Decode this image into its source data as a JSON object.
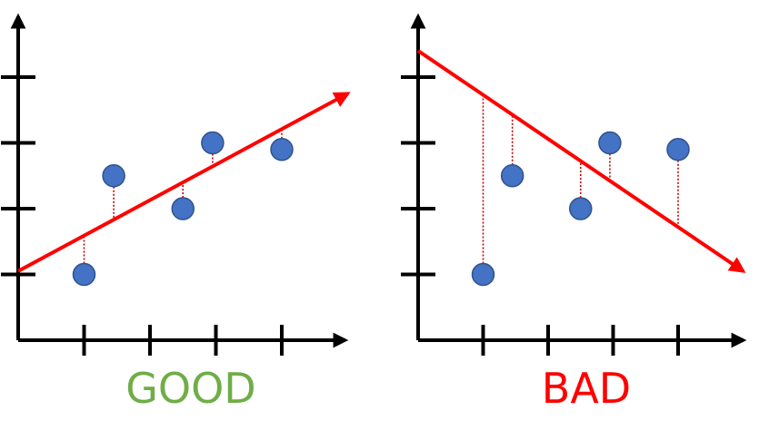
{
  "colors": {
    "axis": "#000000",
    "point_fill": "#4472C4",
    "point_stroke": "#2F528F",
    "fit_line": "#FF0000",
    "residual": "#C00000",
    "good_label": "#70AD47",
    "bad_label": "#FF0000"
  },
  "chart_data": [
    {
      "type": "scatter",
      "caption": "GOOD",
      "xlim": [
        0,
        5
      ],
      "ylim": [
        0,
        5
      ],
      "x_ticks": [
        1,
        2,
        3,
        4
      ],
      "y_ticks": [
        1,
        2,
        3,
        4
      ],
      "points": [
        {
          "x": 1.0,
          "y": 1.0
        },
        {
          "x": 1.45,
          "y": 2.5
        },
        {
          "x": 2.5,
          "y": 2.0
        },
        {
          "x": 2.95,
          "y": 3.0
        },
        {
          "x": 4.0,
          "y": 2.9
        }
      ],
      "fit_line": {
        "x0": 0.0,
        "y0": 1.05,
        "x1": 5.0,
        "y1": 3.75
      },
      "residuals_shown": true
    },
    {
      "type": "scatter",
      "caption": "BAD",
      "xlim": [
        0,
        5
      ],
      "ylim": [
        0,
        5
      ],
      "x_ticks": [
        1,
        2,
        3,
        4
      ],
      "y_ticks": [
        1,
        2,
        3,
        4
      ],
      "points": [
        {
          "x": 1.0,
          "y": 1.0
        },
        {
          "x": 1.45,
          "y": 2.5
        },
        {
          "x": 2.5,
          "y": 2.0
        },
        {
          "x": 2.95,
          "y": 3.0
        },
        {
          "x": 4.0,
          "y": 2.9
        }
      ],
      "fit_line": {
        "x0": 0.0,
        "y0": 4.4,
        "x1": 5.0,
        "y1": 1.05
      },
      "residuals_shown": true
    }
  ]
}
